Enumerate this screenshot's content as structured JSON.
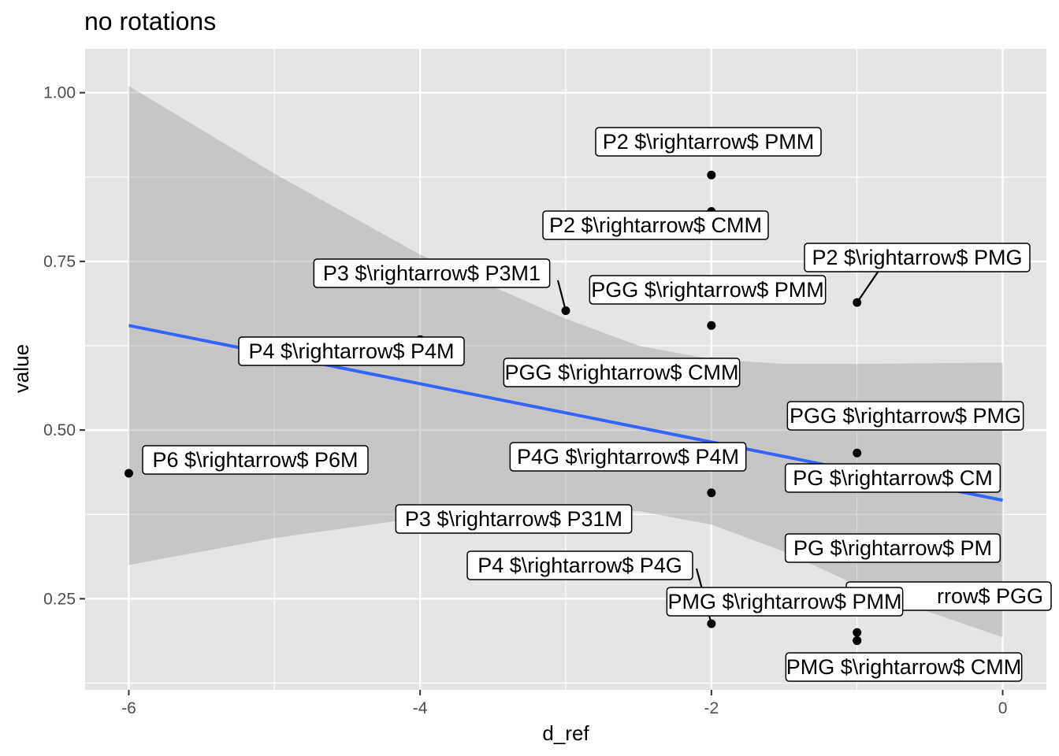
{
  "chart_data": {
    "type": "scatter",
    "title": "no rotations",
    "xlabel": "d_ref",
    "ylabel": "value",
    "xlim": [
      -6.3,
      0.3
    ],
    "ylim": [
      0.115,
      1.065
    ],
    "x_ticks": [
      -6,
      -4,
      -2,
      0
    ],
    "x_tick_labels": [
      "-6",
      "-4",
      "-2",
      "0"
    ],
    "y_ticks": [
      0.25,
      0.5,
      0.75,
      1.0
    ],
    "y_tick_labels": [
      "0.25",
      "0.50",
      "0.75",
      "1.00"
    ],
    "grid": true,
    "colors": {
      "panel": "#E5E5E5",
      "grid": "#FFFFFF",
      "point": "#000000",
      "fit_line": "#3366FF",
      "ribbon": "#999999"
    },
    "fit": {
      "method": "lm",
      "points": [
        {
          "x": -6,
          "y": 0.655,
          "lower": 0.3,
          "upper": 1.01
        },
        {
          "x": -5,
          "y": 0.61,
          "lower": 0.34,
          "upper": 0.88
        },
        {
          "x": -4,
          "y": 0.569,
          "lower": 0.37,
          "upper": 0.76
        },
        {
          "x": -3,
          "y": 0.526,
          "lower": 0.385,
          "upper": 0.665
        },
        {
          "x": -2.5,
          "y": 0.504,
          "lower": 0.38,
          "upper": 0.625
        },
        {
          "x": -2,
          "y": 0.483,
          "lower": 0.36,
          "upper": 0.605
        },
        {
          "x": -1.5,
          "y": 0.462,
          "lower": 0.32,
          "upper": 0.598
        },
        {
          "x": -1,
          "y": 0.44,
          "lower": 0.27,
          "upper": 0.598
        },
        {
          "x": -0.5,
          "y": 0.418,
          "lower": 0.23,
          "upper": 0.599
        },
        {
          "x": 0,
          "y": 0.396,
          "lower": 0.193,
          "upper": 0.6
        }
      ]
    },
    "points": [
      {
        "x": -2,
        "y": 0.878,
        "label": "P2 $\\rightarrow$ PMM"
      },
      {
        "x": -2,
        "y": 0.824,
        "label": "P2 $\\rightarrow$ CMM"
      },
      {
        "x": -1,
        "y": 0.689,
        "label": "P2 $\\rightarrow$ PMG"
      },
      {
        "x": -3,
        "y": 0.677,
        "label": "P3 $\\rightarrow$ P3M1"
      },
      {
        "x": -2,
        "y": 0.655,
        "label": "PGG $\\rightarrow$ PMM"
      },
      {
        "x": -4,
        "y": 0.634,
        "label": "P4 $\\rightarrow$ P4M"
      },
      {
        "x": -2,
        "y": 0.601,
        "label": "PGG $\\rightarrow$ CMM"
      },
      {
        "x": -1,
        "y": 0.466,
        "label": "PGG $\\rightarrow$ PMG"
      },
      {
        "x": -1,
        "y": 0.444,
        "label": "PG $\\rightarrow$ CM"
      },
      {
        "x": -6,
        "y": 0.436,
        "label": "P6 $\\rightarrow$ P6M"
      },
      {
        "x": -2,
        "y": 0.407,
        "label": "P4G $\\rightarrow$ P4M"
      },
      {
        "x": -3,
        "y": 0.383,
        "label": "P3 $\\rightarrow$ P31M"
      },
      {
        "x": -1,
        "y": 0.338,
        "label": "PG $\\rightarrow$ PM"
      },
      {
        "x": -2,
        "y": 0.213,
        "label": "P4 $\\rightarrow$ P4G"
      },
      {
        "x": -1,
        "y": 0.2,
        "label": "rrow$ PGG"
      },
      {
        "x": -1,
        "y": 0.188,
        "label": "PMG $\\rightarrow$ PMM"
      },
      {
        "x": -1,
        "y": 0.188,
        "label": "PMG $\\rightarrow$ CMM"
      }
    ]
  }
}
